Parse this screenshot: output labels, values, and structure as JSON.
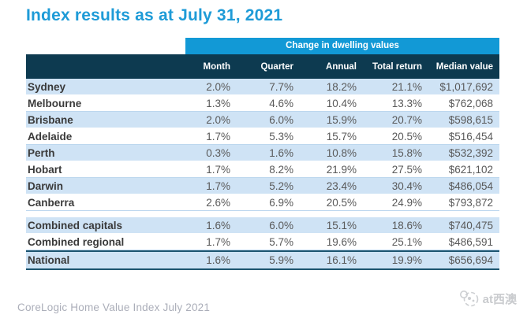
{
  "title": "Index results as at July 31, 2021",
  "table": {
    "band_label": "Change in dwelling values",
    "columns": [
      "Month",
      "Quarter",
      "Annual",
      "Total return",
      "Median value"
    ],
    "rows": [
      {
        "label": "Sydney",
        "values": [
          "2.0%",
          "7.7%",
          "18.2%",
          "21.1%",
          "$1,017,692"
        ]
      },
      {
        "label": "Melbourne",
        "values": [
          "1.3%",
          "4.6%",
          "10.4%",
          "13.3%",
          "$762,068"
        ]
      },
      {
        "label": "Brisbane",
        "values": [
          "2.0%",
          "6.0%",
          "15.9%",
          "20.7%",
          "$598,615"
        ]
      },
      {
        "label": "Adelaide",
        "values": [
          "1.7%",
          "5.3%",
          "15.7%",
          "20.5%",
          "$516,454"
        ]
      },
      {
        "label": "Perth",
        "values": [
          "0.3%",
          "1.6%",
          "10.8%",
          "15.8%",
          "$532,392"
        ]
      },
      {
        "label": "Hobart",
        "values": [
          "1.7%",
          "8.2%",
          "21.9%",
          "27.5%",
          "$621,102"
        ]
      },
      {
        "label": "Darwin",
        "values": [
          "1.7%",
          "5.2%",
          "23.4%",
          "30.4%",
          "$486,054"
        ]
      },
      {
        "label": "Canberra",
        "values": [
          "2.6%",
          "6.9%",
          "20.5%",
          "24.9%",
          "$793,872"
        ]
      }
    ],
    "summary_rows": [
      {
        "label": "Combined capitals",
        "values": [
          "1.6%",
          "6.0%",
          "15.1%",
          "18.6%",
          "$740,475"
        ]
      },
      {
        "label": "Combined regional",
        "values": [
          "1.7%",
          "5.7%",
          "19.6%",
          "25.1%",
          "$486,591"
        ]
      }
    ],
    "national_row": {
      "label": "National",
      "values": [
        "1.6%",
        "5.9%",
        "16.1%",
        "19.9%",
        "$656,694"
      ]
    }
  },
  "footer": {
    "source": "CoreLogic Home Value Index July 2021"
  },
  "watermark": {
    "text": "at西澳"
  },
  "colors": {
    "title_blue": "#1E9BD7",
    "band_blue": "#1299D6",
    "header_navy": "#0D3A50",
    "stripe_blue": "#CFE3F5",
    "national_border": "#1D5570",
    "value_gray": "#595959",
    "label_dark": "#3A3A3A",
    "footer_gray": "#ABAEB9"
  }
}
